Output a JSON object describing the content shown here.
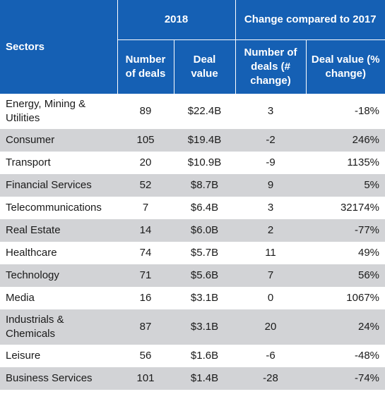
{
  "header": {
    "sectors": "Sectors",
    "group_2018": "2018",
    "group_change": "Change compared to 2017",
    "col_deals_2018": "Number of deals",
    "col_value_2018": "Deal value",
    "col_deals_change": "Number of deals (# change)",
    "col_value_change": "Deal value (% change)"
  },
  "colors": {
    "header_bg": "#1560b4",
    "row_shade": "#d2d3d6"
  },
  "rows": [
    {
      "sector": "Energy, Mining & Utilities",
      "deals": "89",
      "value": "$22.4B",
      "deals_change": "3",
      "value_change": "-18%"
    },
    {
      "sector": "Consumer",
      "deals": "105",
      "value": "$19.4B",
      "deals_change": "-2",
      "value_change": "246%"
    },
    {
      "sector": "Transport",
      "deals": "20",
      "value": "$10.9B",
      "deals_change": "-9",
      "value_change": "1135%"
    },
    {
      "sector": "Financial Services",
      "deals": "52",
      "value": "$8.7B",
      "deals_change": "9",
      "value_change": "5%"
    },
    {
      "sector": "Telecommunications",
      "deals": "7",
      "value": "$6.4B",
      "deals_change": "3",
      "value_change": "32174%"
    },
    {
      "sector": "Real Estate",
      "deals": "14",
      "value": "$6.0B",
      "deals_change": "2",
      "value_change": "-77%"
    },
    {
      "sector": "Healthcare",
      "deals": "74",
      "value": "$5.7B",
      "deals_change": "11",
      "value_change": "49%"
    },
    {
      "sector": "Technology",
      "deals": "71",
      "value": "$5.6B",
      "deals_change": "7",
      "value_change": "56%"
    },
    {
      "sector": "Media",
      "deals": "16",
      "value": "$3.1B",
      "deals_change": "0",
      "value_change": "1067%"
    },
    {
      "sector": "Industrials & Chemicals",
      "deals": "87",
      "value": "$3.1B",
      "deals_change": "20",
      "value_change": "24%"
    },
    {
      "sector": "Leisure",
      "deals": "56",
      "value": "$1.6B",
      "deals_change": "-6",
      "value_change": "-48%"
    },
    {
      "sector": "Business Services",
      "deals": "101",
      "value": "$1.4B",
      "deals_change": "-28",
      "value_change": "-74%"
    }
  ]
}
